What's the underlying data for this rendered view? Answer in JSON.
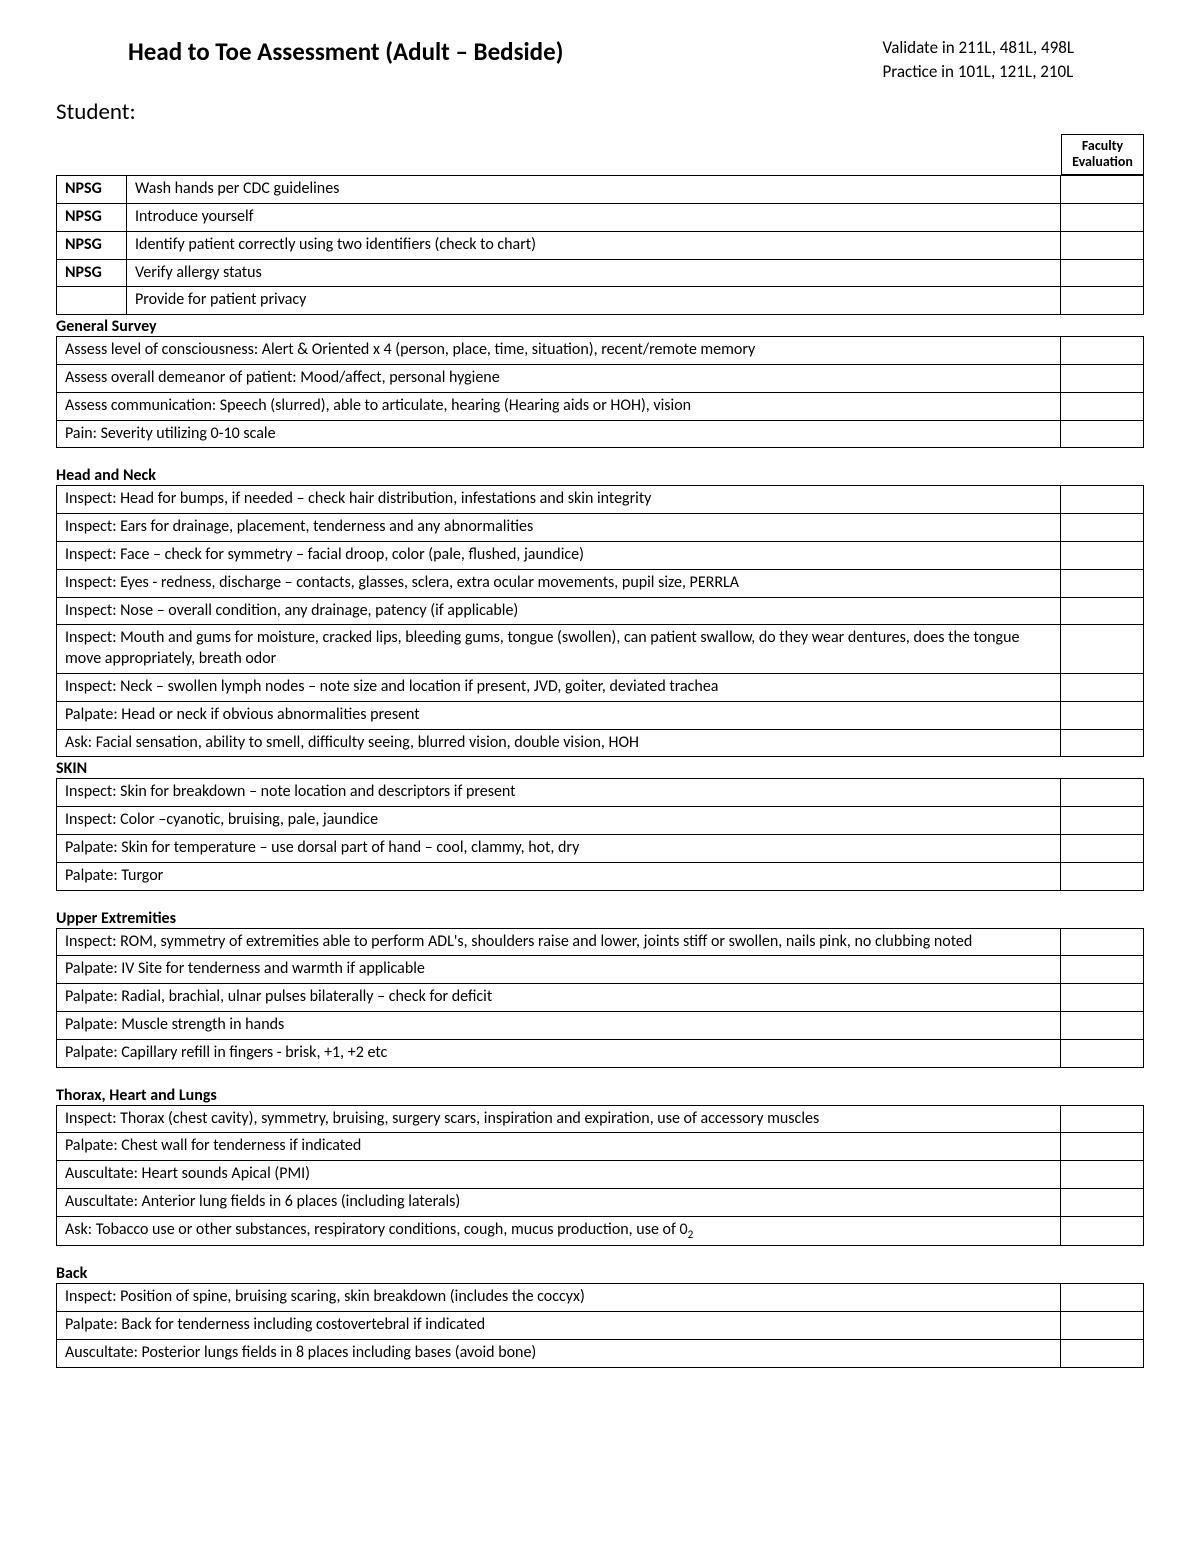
{
  "header": {
    "title": "Head to Toe Assessment (Adult – Bedside)",
    "validate_line": "Validate in 211L, 481L, 498L",
    "practice_line": "Practice in 101L, 121L, 210L",
    "student_label": "Student:",
    "faculty_eval_label": "Faculty Evaluation"
  },
  "npsg_label": "NPSG",
  "npsg_rows": [
    {
      "label": "NPSG",
      "text": "Wash hands per CDC guidelines"
    },
    {
      "label": "NPSG",
      "text": "Introduce yourself"
    },
    {
      "label": "NPSG",
      "text": "Identify patient correctly using two identifiers (check to chart)"
    },
    {
      "label": "NPSG",
      "text": "Verify allergy status"
    },
    {
      "label": "",
      "text": "Provide for patient privacy"
    }
  ],
  "sections": [
    {
      "title": "General Survey",
      "gap": false,
      "rows": [
        "Assess level of consciousness: Alert & Oriented x 4 (person, place, time, situation), recent/remote memory",
        "Assess overall demeanor of patient: Mood/affect, personal hygiene",
        "Assess communication:  Speech (slurred), able to articulate, hearing (Hearing aids or HOH), vision",
        "Pain: Severity utilizing 0-10 scale"
      ]
    },
    {
      "title": "Head and Neck",
      "gap": true,
      "rows": [
        "Inspect: Head for bumps, if needed – check hair distribution, infestations and skin integrity",
        "Inspect:  Ears for drainage, placement, tenderness and any abnormalities",
        "Inspect:  Face – check for symmetry – facial droop, color (pale, flushed, jaundice)",
        "Inspect:  Eyes - redness, discharge – contacts, glasses, sclera, extra ocular movements, pupil size, PERRLA",
        "Inspect:  Nose – overall condition, any drainage, patency (if applicable)",
        "Inspect:  Mouth and gums for moisture, cracked lips, bleeding gums, tongue (swollen), can patient swallow, do they wear dentures,  does the tongue move appropriately, breath odor",
        "Inspect:  Neck – swollen lymph nodes – note size and location if present, JVD, goiter, deviated trachea",
        "Palpate: Head or neck if obvious abnormalities present",
        "Ask: Facial sensation, ability to smell, difficulty seeing, blurred vision, double vision, HOH"
      ]
    },
    {
      "title": "SKIN",
      "gap": false,
      "rows": [
        "Inspect:  Skin for breakdown – note location and descriptors if present",
        "Inspect:  Color –cyanotic, bruising, pale, jaundice",
        "Palpate: Skin for temperature – use dorsal part of hand – cool, clammy, hot, dry",
        "Palpate: Turgor"
      ]
    },
    {
      "title": "Upper Extremities",
      "gap": true,
      "rows": [
        "Inspect:  ROM, symmetry of extremities able to perform ADL's, shoulders raise and lower, joints stiff or swollen, nails pink, no clubbing noted",
        "Palpate: IV Site for tenderness and warmth if applicable",
        "Palpate:  Radial, brachial, ulnar pulses bilaterally – check for deficit",
        "Palpate: Muscle strength in hands",
        "Palpate: Capillary refill in fingers - brisk, +1, +2 etc"
      ]
    },
    {
      "title": "Thorax, Heart and Lungs",
      "gap": true,
      "rows": [
        "Inspect: Thorax (chest cavity), symmetry, bruising, surgery scars, inspiration and expiration, use of accessory muscles",
        "Palpate: Chest wall for tenderness if indicated",
        "Auscultate: Heart sounds Apical (PMI)",
        "Auscultate:  Anterior lung fields in 6 places (including laterals)",
        "Ask: Tobacco use or other substances, respiratory conditions, cough, mucus production, use of 0₂"
      ]
    },
    {
      "title": "Back",
      "gap": true,
      "rows": [
        "Inspect: Position of spine, bruising scaring, skin breakdown (includes the coccyx)",
        "Palpate: Back for tenderness including costovertebral if indicated",
        "Auscultate: Posterior lungs fields in 8 places including bases (avoid bone)"
      ]
    }
  ]
}
